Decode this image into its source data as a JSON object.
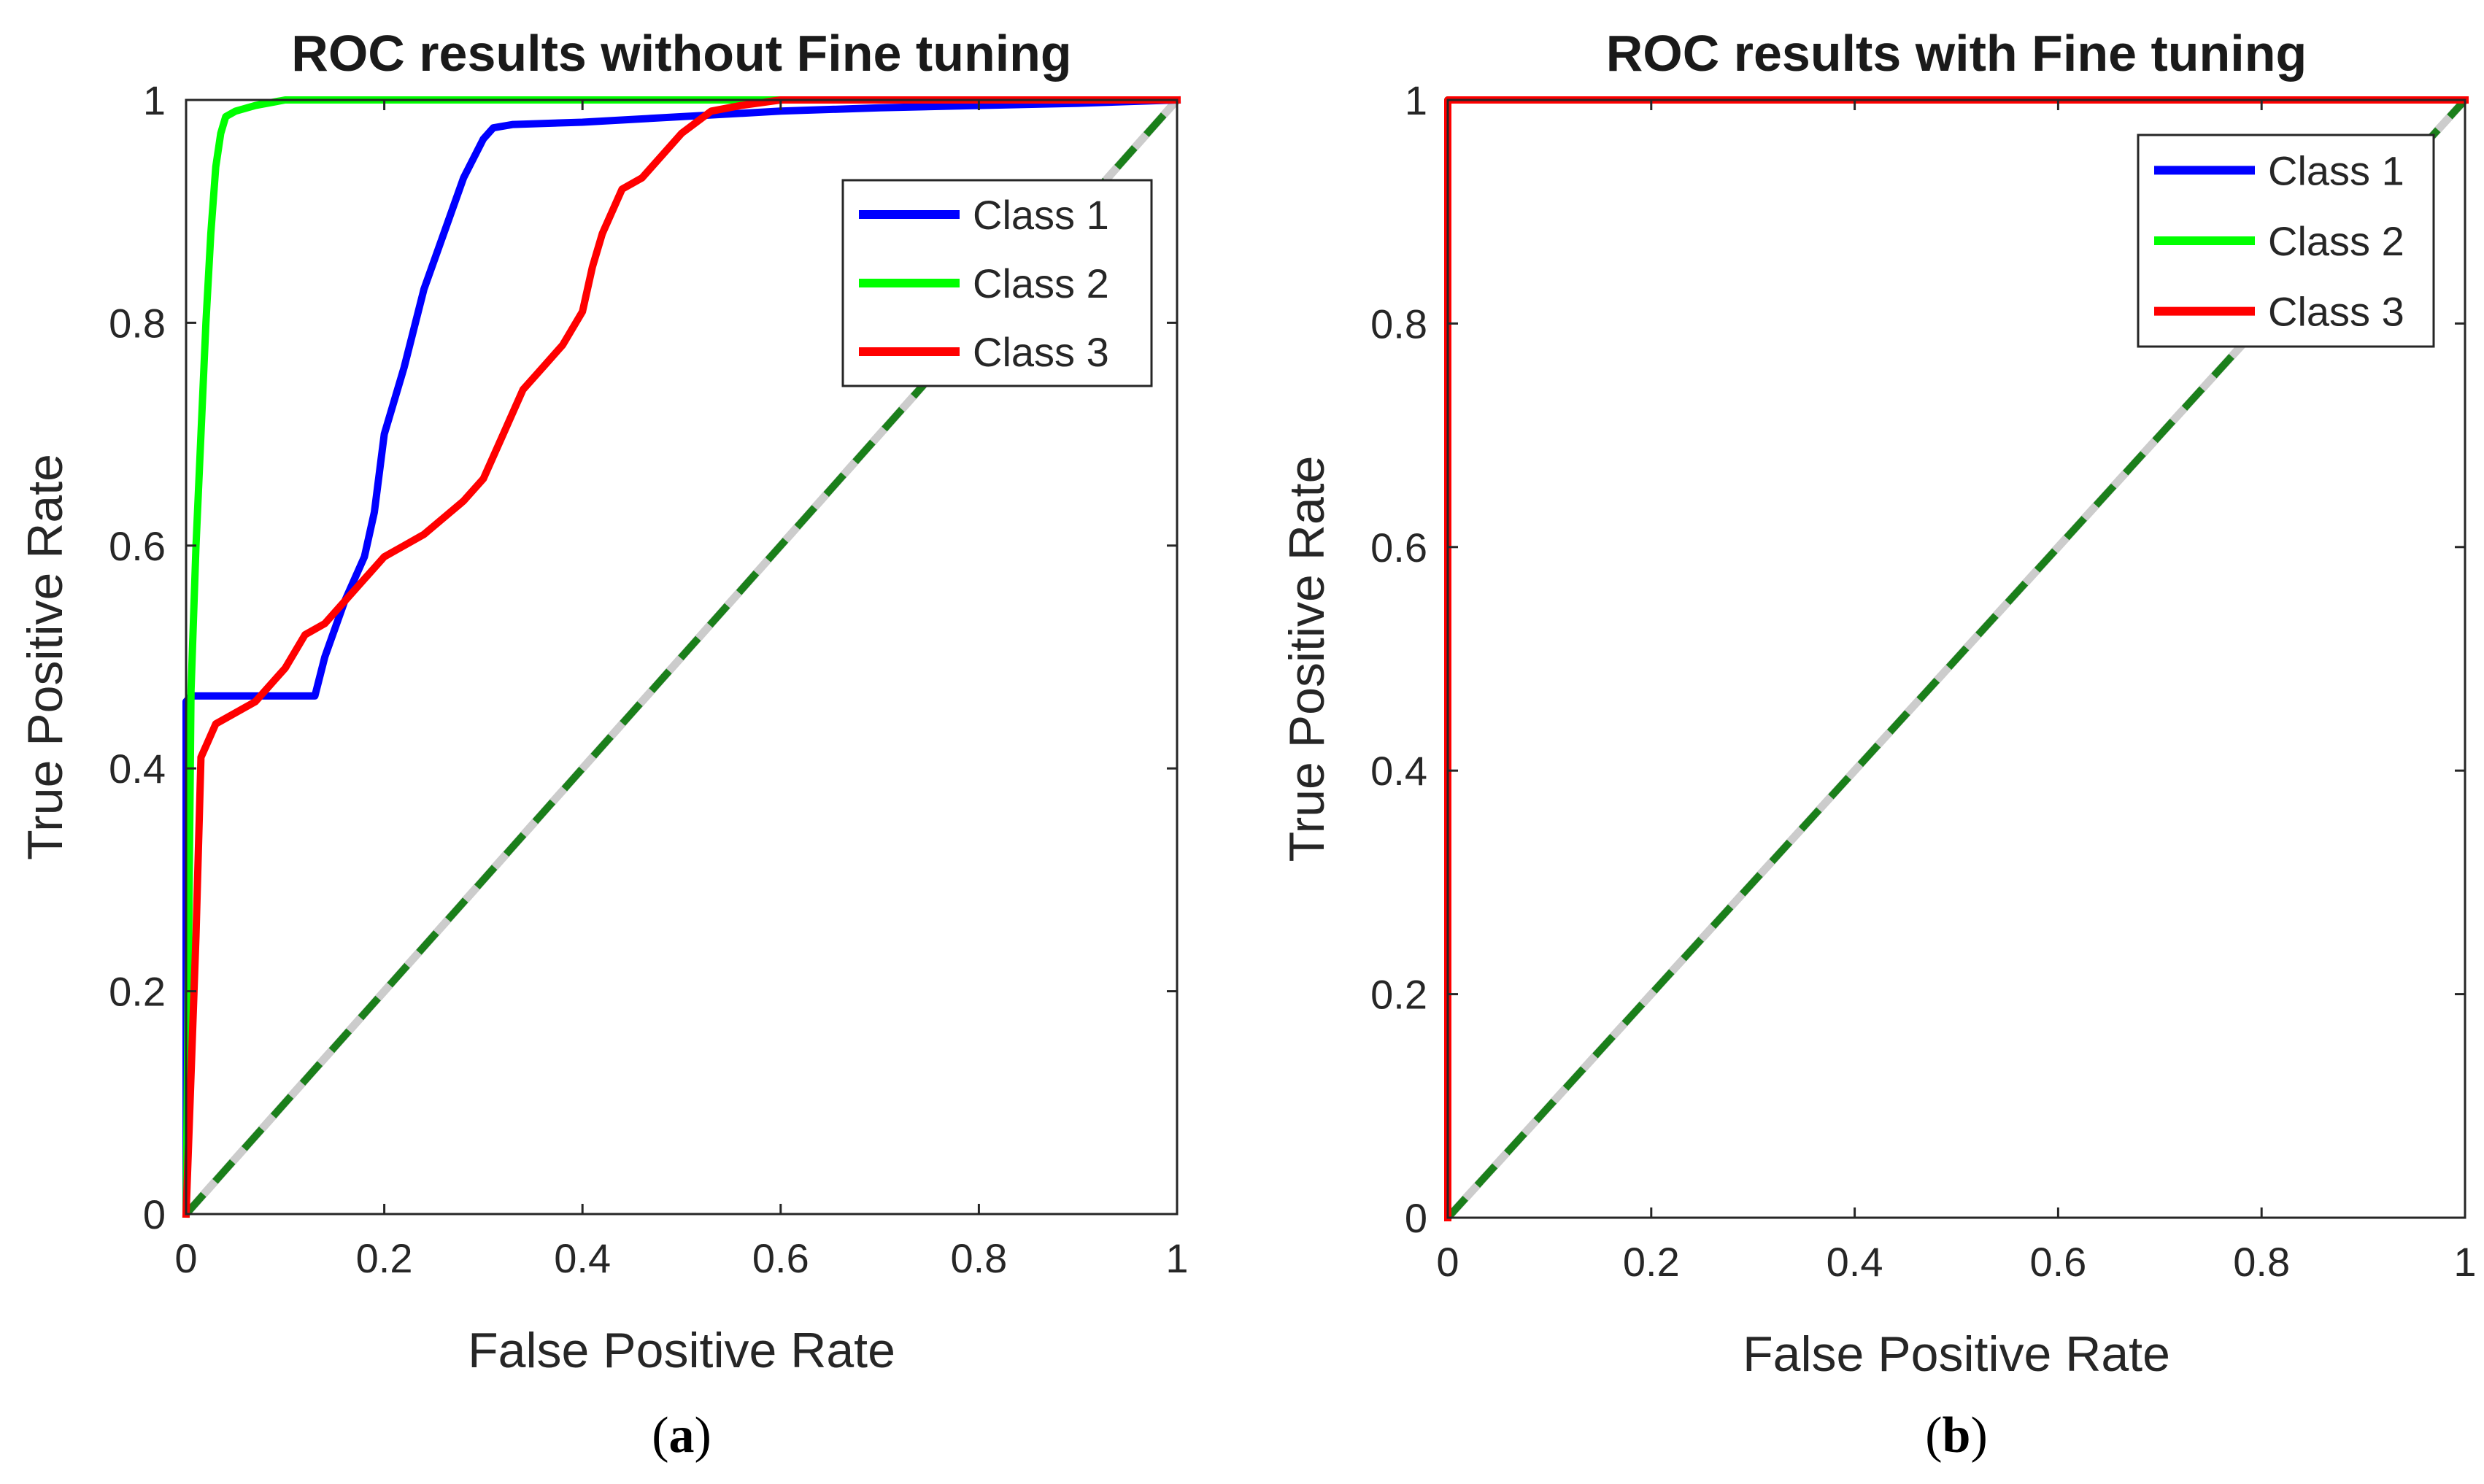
{
  "chart_data": [
    {
      "type": "line",
      "panel": "a",
      "title": "ROC results without Fine tuning",
      "xlabel": "False Positive Rate",
      "ylabel": "True Positive Rate",
      "xlim": [
        0,
        1
      ],
      "ylim": [
        0,
        1
      ],
      "xticks": [
        "0",
        "0.2",
        "0.4",
        "0.6",
        "0.8",
        "1"
      ],
      "yticks": [
        "0",
        "0.2",
        "0.4",
        "0.6",
        "0.8",
        "1"
      ],
      "legend_location": "top-right",
      "caption_letter": "a",
      "series": [
        {
          "name": "Class 1",
          "color": "#0000ff",
          "x": [
            0,
            0,
            0.005,
            0.13,
            0.14,
            0.16,
            0.18,
            0.19,
            0.2,
            0.22,
            0.24,
            0.26,
            0.28,
            0.3,
            0.31,
            0.33,
            0.4,
            0.5,
            0.6,
            0.7,
            0.8,
            0.9,
            1
          ],
          "y": [
            0,
            0.46,
            0.465,
            0.465,
            0.5,
            0.55,
            0.59,
            0.63,
            0.7,
            0.76,
            0.83,
            0.88,
            0.93,
            0.965,
            0.975,
            0.978,
            0.98,
            0.985,
            0.99,
            0.993,
            0.995,
            0.997,
            1
          ]
        },
        {
          "name": "Class 2",
          "color": "#00ff00",
          "x": [
            0,
            0.005,
            0.01,
            0.015,
            0.02,
            0.025,
            0.03,
            0.035,
            0.04,
            0.05,
            0.07,
            0.1,
            0.2,
            0.5,
            1
          ],
          "y": [
            0,
            0.47,
            0.6,
            0.7,
            0.8,
            0.88,
            0.94,
            0.97,
            0.985,
            0.99,
            0.995,
            1,
            1,
            1,
            1
          ]
        },
        {
          "name": "Class 3",
          "color": "#ff0000",
          "x": [
            0,
            0.01,
            0.015,
            0.02,
            0.03,
            0.05,
            0.07,
            0.08,
            0.1,
            0.12,
            0.14,
            0.16,
            0.18,
            0.2,
            0.22,
            0.24,
            0.26,
            0.28,
            0.3,
            0.32,
            0.34,
            0.36,
            0.38,
            0.4,
            0.41,
            0.42,
            0.44,
            0.46,
            0.48,
            0.5,
            0.53,
            0.56,
            0.6,
            0.62,
            0.63,
            0.7,
            0.8,
            0.9,
            1
          ],
          "y": [
            0,
            0.25,
            0.41,
            0.42,
            0.44,
            0.45,
            0.46,
            0.47,
            0.49,
            0.52,
            0.53,
            0.55,
            0.57,
            0.59,
            0.6,
            0.61,
            0.625,
            0.64,
            0.66,
            0.7,
            0.74,
            0.76,
            0.78,
            0.81,
            0.85,
            0.88,
            0.92,
            0.93,
            0.95,
            0.97,
            0.99,
            0.995,
            1,
            1,
            1,
            1,
            1,
            1,
            1
          ]
        }
      ],
      "reference_line": {
        "x": [
          0,
          1
        ],
        "y": [
          0,
          1
        ],
        "style": "dashed",
        "color": "#1a7f1a",
        "underlay_color": "#cccccc"
      }
    },
    {
      "type": "line",
      "panel": "b",
      "title": "ROC results with Fine tuning",
      "xlabel": "False Positive Rate",
      "ylabel": "True Positive Rate",
      "xlim": [
        0,
        1
      ],
      "ylim": [
        0,
        1
      ],
      "xticks": [
        "0",
        "0.2",
        "0.4",
        "0.6",
        "0.8",
        "1"
      ],
      "yticks": [
        "0",
        "0.2",
        "0.4",
        "0.6",
        "0.8",
        "1"
      ],
      "legend_location": "top-right",
      "caption_letter": "b",
      "series": [
        {
          "name": "Class 1",
          "color": "#0000ff",
          "x": [
            0,
            0,
            1
          ],
          "y": [
            0,
            1,
            1
          ]
        },
        {
          "name": "Class 2",
          "color": "#00ff00",
          "x": [
            0,
            0,
            1
          ],
          "y": [
            0,
            1,
            1
          ]
        },
        {
          "name": "Class 3",
          "color": "#ff0000",
          "x": [
            0,
            0,
            1
          ],
          "y": [
            0,
            1,
            1
          ]
        }
      ],
      "reference_line": {
        "x": [
          0,
          1
        ],
        "y": [
          0,
          1
        ],
        "style": "dashed",
        "color": "#1a7f1a",
        "underlay_color": "#cccccc"
      }
    }
  ]
}
